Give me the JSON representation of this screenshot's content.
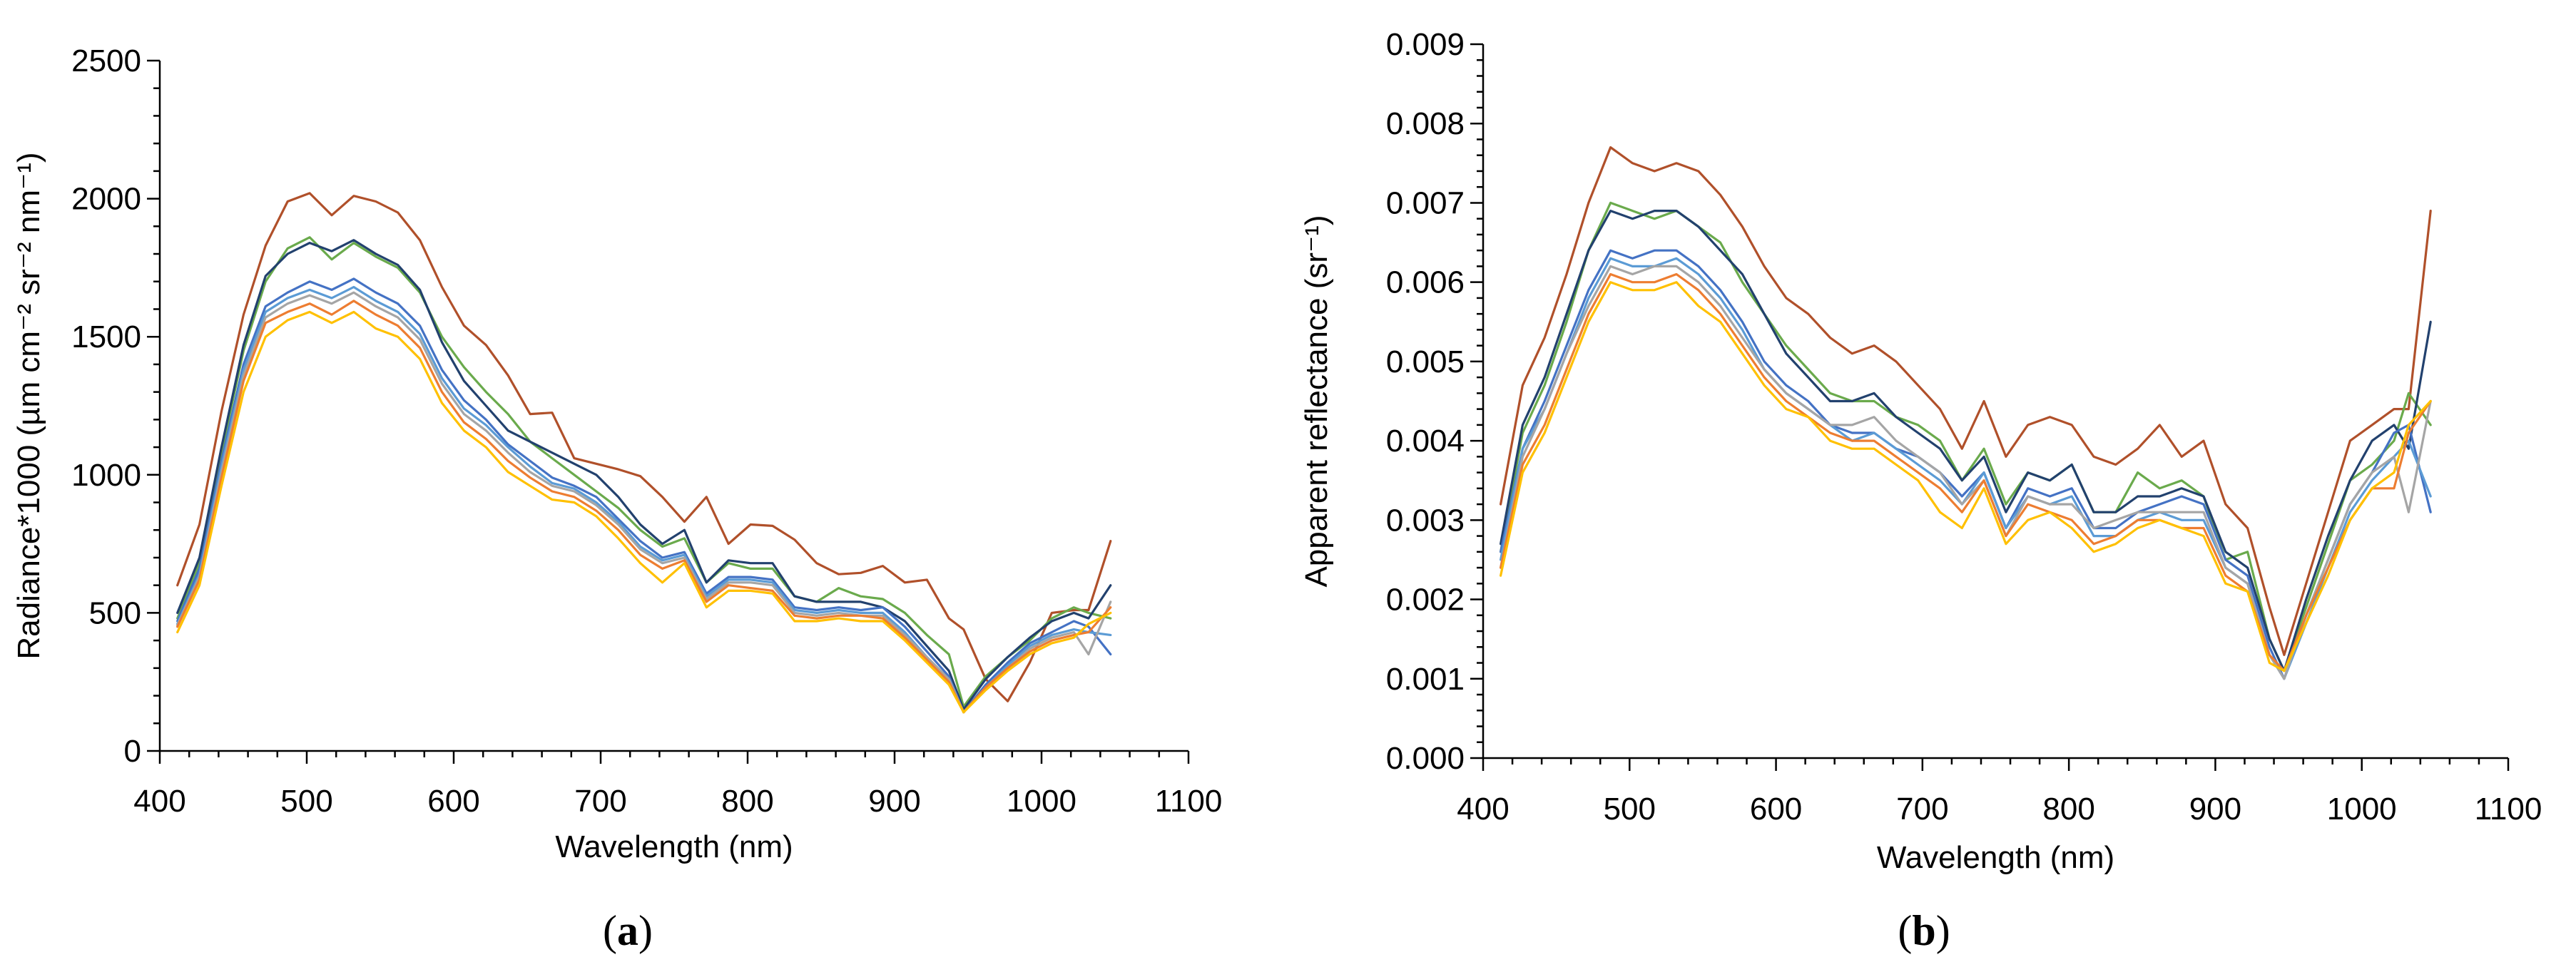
{
  "chart_data": [
    {
      "type": "line",
      "panel_label": "a",
      "xlabel": "Wavelength (nm)",
      "ylabel": "Radiance*1000 (µm cm⁻² sr⁻² nm⁻¹)",
      "xlim": [
        400,
        1100
      ],
      "ylim": [
        0,
        2500
      ],
      "xticks": [
        400,
        500,
        600,
        700,
        800,
        900,
        1000,
        1100
      ],
      "yticks": [
        0,
        500,
        1000,
        1500,
        2000,
        2500
      ],
      "x": [
        412,
        427,
        442,
        457,
        472,
        487,
        502,
        517,
        532,
        547,
        562,
        577,
        592,
        607,
        622,
        637,
        652,
        667,
        682,
        697,
        712,
        727,
        742,
        757,
        772,
        787,
        802,
        817,
        832,
        847,
        862,
        877,
        892,
        907,
        922,
        937,
        947,
        962,
        977,
        992,
        1007,
        1022,
        1032,
        1047
      ],
      "series": [
        {
          "name": "brown",
          "color": "#b0502a",
          "values": [
            600,
            820,
            1230,
            1580,
            1830,
            1990,
            2020,
            1940,
            2010,
            1990,
            1950,
            1850,
            1680,
            1540,
            1470,
            1360,
            1220,
            1225,
            1060,
            1040,
            1020,
            995,
            920,
            830,
            920,
            750,
            820,
            815,
            765,
            680,
            640,
            645,
            670,
            610,
            620,
            480,
            440,
            260,
            180,
            320,
            500,
            510,
            510,
            760
          ]
        },
        {
          "name": "green",
          "color": "#6aaa4c",
          "values": [
            480,
            680,
            1080,
            1450,
            1700,
            1820,
            1860,
            1780,
            1840,
            1790,
            1750,
            1660,
            1500,
            1390,
            1300,
            1220,
            1120,
            1060,
            1000,
            940,
            880,
            800,
            740,
            770,
            610,
            680,
            660,
            660,
            560,
            540,
            590,
            560,
            550,
            500,
            420,
            350,
            160,
            270,
            340,
            400,
            480,
            520,
            500,
            480
          ]
        },
        {
          "name": "navy",
          "color": "#22416e",
          "values": [
            500,
            700,
            1100,
            1470,
            1720,
            1800,
            1840,
            1810,
            1850,
            1800,
            1760,
            1670,
            1480,
            1340,
            1250,
            1160,
            1120,
            1080,
            1040,
            1000,
            920,
            820,
            750,
            800,
            610,
            690,
            680,
            680,
            560,
            540,
            540,
            540,
            520,
            470,
            380,
            290,
            150,
            260,
            340,
            410,
            470,
            500,
            480,
            600
          ]
        },
        {
          "name": "blue",
          "color": "#4472c4",
          "values": [
            470,
            660,
            1050,
            1400,
            1610,
            1660,
            1700,
            1670,
            1710,
            1660,
            1620,
            1540,
            1380,
            1270,
            1200,
            1110,
            1050,
            990,
            960,
            920,
            840,
            760,
            700,
            720,
            570,
            630,
            630,
            620,
            520,
            510,
            520,
            510,
            520,
            450,
            360,
            270,
            140,
            240,
            320,
            390,
            430,
            470,
            450,
            350
          ]
        },
        {
          "name": "lightblue",
          "color": "#5b9bd5",
          "values": [
            460,
            640,
            1030,
            1380,
            1590,
            1640,
            1670,
            1640,
            1680,
            1630,
            1590,
            1510,
            1350,
            1240,
            1180,
            1100,
            1030,
            970,
            950,
            900,
            830,
            740,
            690,
            710,
            560,
            620,
            620,
            610,
            510,
            500,
            510,
            500,
            500,
            430,
            340,
            260,
            140,
            230,
            310,
            380,
            420,
            440,
            430,
            420
          ]
        },
        {
          "name": "gray",
          "color": "#a5a5a5",
          "values": [
            455,
            630,
            1010,
            1360,
            1570,
            1620,
            1650,
            1620,
            1660,
            1610,
            1570,
            1490,
            1330,
            1220,
            1160,
            1080,
            1010,
            960,
            940,
            890,
            820,
            730,
            680,
            700,
            550,
            610,
            610,
            600,
            500,
            490,
            500,
            490,
            490,
            420,
            340,
            260,
            140,
            230,
            300,
            370,
            410,
            430,
            350,
            540
          ]
        },
        {
          "name": "orange",
          "color": "#ed7d31",
          "values": [
            450,
            620,
            990,
            1340,
            1550,
            1590,
            1620,
            1580,
            1630,
            1580,
            1540,
            1460,
            1300,
            1190,
            1130,
            1050,
            990,
            940,
            920,
            870,
            800,
            710,
            660,
            690,
            540,
            600,
            590,
            580,
            490,
            480,
            490,
            490,
            480,
            410,
            330,
            250,
            140,
            230,
            300,
            360,
            400,
            420,
            430,
            520
          ]
        },
        {
          "name": "yellow",
          "color": "#ffc000",
          "values": [
            430,
            600,
            960,
            1300,
            1500,
            1560,
            1590,
            1550,
            1590,
            1530,
            1500,
            1420,
            1260,
            1160,
            1100,
            1010,
            960,
            910,
            900,
            850,
            770,
            680,
            610,
            680,
            520,
            580,
            580,
            570,
            470,
            470,
            480,
            470,
            470,
            400,
            320,
            240,
            140,
            220,
            290,
            350,
            390,
            410,
            460,
            500
          ]
        }
      ]
    },
    {
      "type": "line",
      "panel_label": "b",
      "xlabel": "Wavelength (nm)",
      "ylabel": "Apparent reflectance (sr⁻¹)",
      "xlim": [
        400,
        1100
      ],
      "ylim": [
        0,
        0.009
      ],
      "xticks": [
        400,
        500,
        600,
        700,
        800,
        900,
        1000,
        1100
      ],
      "yticks": [
        0,
        0.001,
        0.002,
        0.003,
        0.004,
        0.005,
        0.006,
        0.007,
        0.008,
        0.009
      ],
      "x": [
        412,
        427,
        442,
        457,
        472,
        487,
        502,
        517,
        532,
        547,
        562,
        577,
        592,
        607,
        622,
        637,
        652,
        667,
        682,
        697,
        712,
        727,
        742,
        757,
        772,
        787,
        802,
        817,
        832,
        847,
        862,
        877,
        892,
        907,
        922,
        937,
        947,
        962,
        977,
        992,
        1007,
        1022,
        1032,
        1047
      ],
      "series": [
        {
          "name": "brown",
          "color": "#b0502a",
          "values": [
            0.0032,
            0.0047,
            0.0053,
            0.0061,
            0.007,
            0.0077,
            0.0075,
            0.0074,
            0.0075,
            0.0074,
            0.0071,
            0.0067,
            0.0062,
            0.0058,
            0.0056,
            0.0053,
            0.0051,
            0.0052,
            0.005,
            0.0047,
            0.0044,
            0.0039,
            0.0045,
            0.0038,
            0.0042,
            0.0043,
            0.0042,
            0.0038,
            0.0037,
            0.0039,
            0.0042,
            0.0038,
            0.004,
            0.0032,
            0.0029,
            0.0019,
            0.0013,
            0.0022,
            0.0031,
            0.004,
            0.0042,
            0.0044,
            0.0044,
            0.0069
          ]
        },
        {
          "name": "green",
          "color": "#6aaa4c",
          "values": [
            0.0026,
            0.0041,
            0.0047,
            0.0055,
            0.0064,
            0.007,
            0.0069,
            0.0068,
            0.0069,
            0.0067,
            0.0065,
            0.006,
            0.0056,
            0.0052,
            0.0049,
            0.0046,
            0.0045,
            0.0045,
            0.0043,
            0.0042,
            0.004,
            0.0035,
            0.0039,
            0.0032,
            0.0036,
            0.0035,
            0.0037,
            0.0031,
            0.0031,
            0.0036,
            0.0034,
            0.0035,
            0.0033,
            0.0025,
            0.0026,
            0.0015,
            0.0011,
            0.0019,
            0.0027,
            0.0035,
            0.0037,
            0.004,
            0.0046,
            0.0042
          ]
        },
        {
          "name": "navy",
          "color": "#22416e",
          "values": [
            0.0027,
            0.0042,
            0.0048,
            0.0056,
            0.0064,
            0.0069,
            0.0068,
            0.0069,
            0.0069,
            0.0067,
            0.0064,
            0.0061,
            0.0056,
            0.0051,
            0.0048,
            0.0045,
            0.0045,
            0.0046,
            0.0043,
            0.0041,
            0.0039,
            0.0035,
            0.0038,
            0.0031,
            0.0036,
            0.0035,
            0.0037,
            0.0031,
            0.0031,
            0.0033,
            0.0033,
            0.0034,
            0.0033,
            0.0026,
            0.0024,
            0.0015,
            0.0011,
            0.002,
            0.0028,
            0.0035,
            0.004,
            0.0042,
            0.0039,
            0.0055
          ]
        },
        {
          "name": "blue",
          "color": "#4472c4",
          "values": [
            0.0026,
            0.0039,
            0.0045,
            0.0052,
            0.0059,
            0.0064,
            0.0063,
            0.0064,
            0.0064,
            0.0062,
            0.0059,
            0.0055,
            0.005,
            0.0047,
            0.0045,
            0.0042,
            0.0041,
            0.0041,
            0.0039,
            0.0038,
            0.0036,
            0.0033,
            0.0036,
            0.0029,
            0.0034,
            0.0033,
            0.0034,
            0.0029,
            0.0029,
            0.0031,
            0.0032,
            0.0033,
            0.0032,
            0.0025,
            0.0023,
            0.0014,
            0.001,
            0.0018,
            0.0025,
            0.0032,
            0.0036,
            0.0041,
            0.0042,
            0.0031
          ]
        },
        {
          "name": "lightblue",
          "color": "#5b9bd5",
          "values": [
            0.0025,
            0.0039,
            0.0044,
            0.0051,
            0.0058,
            0.0063,
            0.0062,
            0.0062,
            0.0063,
            0.0061,
            0.0058,
            0.0054,
            0.0049,
            0.0046,
            0.0044,
            0.0042,
            0.004,
            0.0041,
            0.0039,
            0.0037,
            0.0035,
            0.0032,
            0.0036,
            0.0029,
            0.0033,
            0.0032,
            0.0033,
            0.0028,
            0.0028,
            0.003,
            0.0031,
            0.003,
            0.003,
            0.0024,
            0.0022,
            0.0013,
            0.001,
            0.0017,
            0.0024,
            0.0031,
            0.0035,
            0.0038,
            0.004,
            0.0033
          ]
        },
        {
          "name": "gray",
          "color": "#a5a5a5",
          "values": [
            0.0024,
            0.0038,
            0.0044,
            0.0051,
            0.0057,
            0.0062,
            0.0061,
            0.0062,
            0.0062,
            0.006,
            0.0057,
            0.0053,
            0.0049,
            0.0046,
            0.0044,
            0.0042,
            0.0042,
            0.0043,
            0.004,
            0.0038,
            0.0036,
            0.0032,
            0.0035,
            0.0028,
            0.0033,
            0.0032,
            0.0032,
            0.0029,
            0.003,
            0.0031,
            0.0031,
            0.0031,
            0.0031,
            0.0024,
            0.0022,
            0.0013,
            0.001,
            0.0018,
            0.0025,
            0.0032,
            0.0036,
            0.0038,
            0.0031,
            0.0045
          ]
        },
        {
          "name": "orange",
          "color": "#ed7d31",
          "values": [
            0.0024,
            0.0037,
            0.0042,
            0.0049,
            0.0056,
            0.0061,
            0.006,
            0.006,
            0.0061,
            0.0059,
            0.0056,
            0.0052,
            0.0048,
            0.0045,
            0.0043,
            0.0041,
            0.004,
            0.004,
            0.0038,
            0.0036,
            0.0034,
            0.0031,
            0.0035,
            0.0028,
            0.0032,
            0.0031,
            0.003,
            0.0027,
            0.0028,
            0.003,
            0.003,
            0.0029,
            0.0029,
            0.0023,
            0.0021,
            0.0013,
            0.0011,
            0.0018,
            0.0024,
            0.003,
            0.0034,
            0.0034,
            0.0041,
            0.0045
          ]
        },
        {
          "name": "yellow",
          "color": "#ffc000",
          "values": [
            0.0023,
            0.0036,
            0.0041,
            0.0048,
            0.0055,
            0.006,
            0.0059,
            0.0059,
            0.006,
            0.0057,
            0.0055,
            0.0051,
            0.0047,
            0.0044,
            0.0043,
            0.004,
            0.0039,
            0.0039,
            0.0037,
            0.0035,
            0.0031,
            0.0029,
            0.0034,
            0.0027,
            0.003,
            0.0031,
            0.0029,
            0.0026,
            0.0027,
            0.0029,
            0.003,
            0.0029,
            0.0028,
            0.0022,
            0.0021,
            0.0012,
            0.0011,
            0.0017,
            0.0023,
            0.003,
            0.0034,
            0.0036,
            0.0042,
            0.0045
          ]
        }
      ]
    }
  ]
}
